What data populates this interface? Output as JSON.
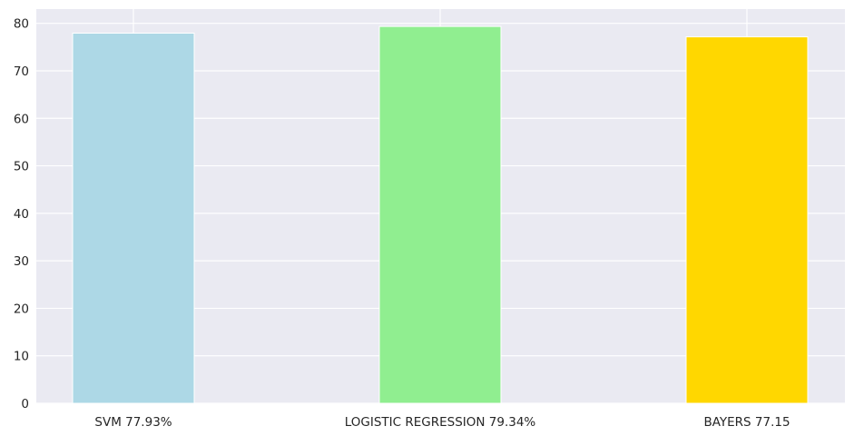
{
  "chart_data": {
    "type": "bar",
    "categories": [
      "SVM 77.93%",
      "LOGISTIC REGRESSION 79.34%",
      "BAYERS 77.15"
    ],
    "values": [
      77.93,
      79.34,
      77.15
    ],
    "colors": [
      "#add8e6",
      "#90ee90",
      "#ffd700"
    ],
    "ylim": [
      0,
      83
    ],
    "yticks": [
      0,
      10,
      20,
      30,
      40,
      50,
      60,
      70,
      80
    ],
    "grid": true,
    "background": "#eaeaf2",
    "grid_color": "#ffffff"
  }
}
